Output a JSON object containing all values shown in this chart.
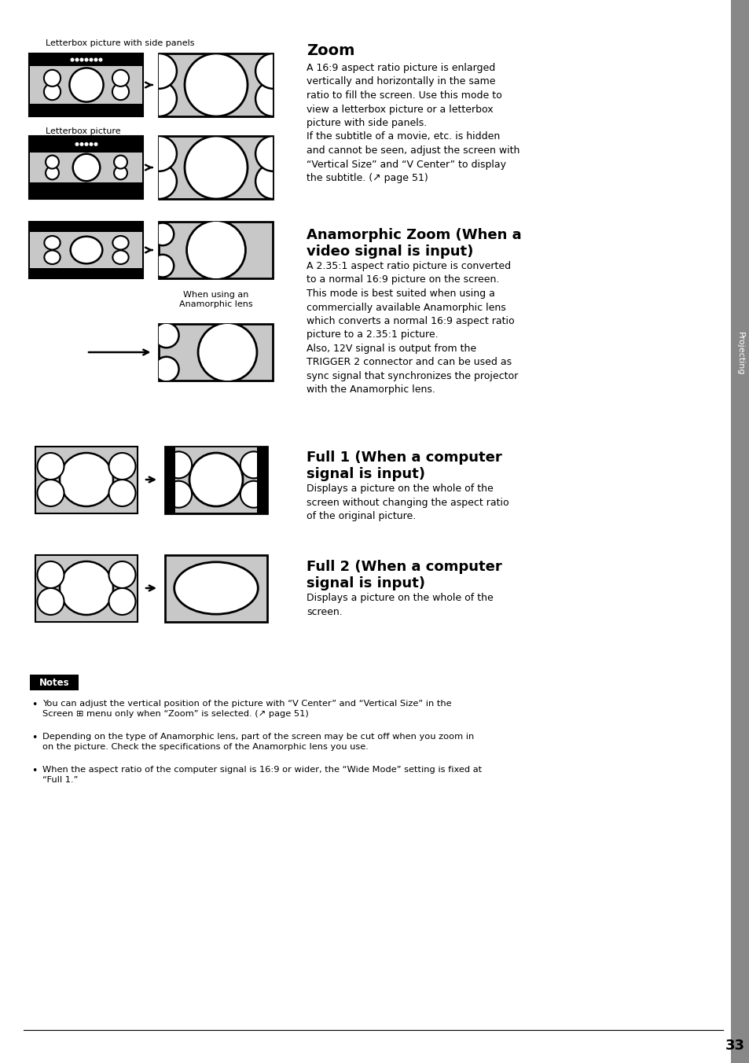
{
  "bg_color": "#ffffff",
  "page_number": "33",
  "sidebar_color": "#888888",
  "sidebar_text": "Projecting",
  "section1_label_top": "Letterbox picture with side panels",
  "section1_label_bottom": "Letterbox picture",
  "zoom_title": "Zoom",
  "zoom_body": "A 16:9 aspect ratio picture is enlarged\nvertically and horizontally in the same\nratio to fill the screen. Use this mode to\nview a letterbox picture or a letterbox\npicture with side panels.\nIf the subtitle of a movie, etc. is hidden\nand cannot be seen, adjust the screen with\n“Vertical Size” and “V Center” to display\nthe subtitle. (↗ page 51)",
  "anamorphic_title": "Anamorphic Zoom (When a\nvideo signal is input)",
  "anamorphic_body": "A 2.35:1 aspect ratio picture is converted\nto a normal 16:9 picture on the screen.\nThis mode is best suited when using a\ncommercially available Anamorphic lens\nwhich converts a normal 16:9 aspect ratio\npicture to a 2.35:1 picture.\nAlso, 12V signal is output from the\nTRIGGER 2 connector and can be used as\nsync signal that synchronizes the projector\nwith the Anamorphic lens.",
  "anamorphic_sublabel": "When using an\nAnamorphic lens",
  "full1_title": "Full 1 (When a computer\nsignal is input)",
  "full1_body": "Displays a picture on the whole of the\nscreen without changing the aspect ratio\nof the original picture.",
  "full2_title": "Full 2 (When a computer\nsignal is input)",
  "full2_body": "Displays a picture on the whole of the\nscreen.",
  "notes_title": "Notes",
  "notes": [
    "You can adjust the vertical position of the picture with “V Center” and “Vertical Size” in the\nScreen ⊞ menu only when “Zoom” is selected. (↗ page 51)",
    "Depending on the type of Anamorphic lens, part of the screen may be cut off when you zoom in\non the picture. Check the specifications of the Anamorphic lens you use.",
    "When the aspect ratio of the computer signal is 16:9 or wider, the “Wide Mode” setting is fixed at\n“Full 1.”"
  ],
  "black": "#000000",
  "gray_light": "#c8c8c8",
  "white": "#ffffff"
}
